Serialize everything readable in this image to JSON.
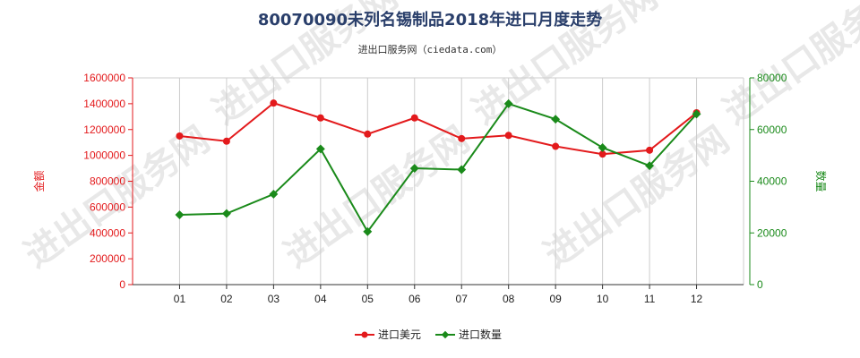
{
  "title": "80070090未列名锡制品2018年进口月度走势",
  "subtitle": "进出口服务网（ciedata.com）",
  "watermark": "进出口服务网",
  "colors": {
    "amount": "#e31a1c",
    "quantity": "#1a8a1a",
    "grid": "#cccccc",
    "axis_left": "#e31a1c",
    "axis_right": "#1a8a1a"
  },
  "chart_data": {
    "type": "line",
    "categories": [
      "01",
      "02",
      "03",
      "04",
      "05",
      "06",
      "07",
      "08",
      "09",
      "10",
      "11",
      "12"
    ],
    "series": [
      {
        "name": "进口美元",
        "axis": "left",
        "values": [
          1150000,
          1110000,
          1405000,
          1290000,
          1165000,
          1290000,
          1130000,
          1155000,
          1070000,
          1010000,
          1040000,
          1330000
        ]
      },
      {
        "name": "进口数量",
        "axis": "right",
        "values": [
          27000,
          27500,
          35000,
          52500,
          20500,
          45000,
          44500,
          70000,
          64000,
          53000,
          46000,
          66000
        ]
      }
    ],
    "ylabel_left": "金额",
    "ylabel_right": "数量",
    "ylim_left": [
      0,
      1600000
    ],
    "ylim_right": [
      0,
      80000
    ],
    "yticks_left": [
      "0",
      "200000",
      "400000",
      "600000",
      "800000",
      "1000000",
      "1200000",
      "1400000",
      "1600000"
    ],
    "yticks_right": [
      "0",
      "20000",
      "40000",
      "60000",
      "80000"
    ],
    "grid": "vertical",
    "legend_position": "bottom-center"
  }
}
